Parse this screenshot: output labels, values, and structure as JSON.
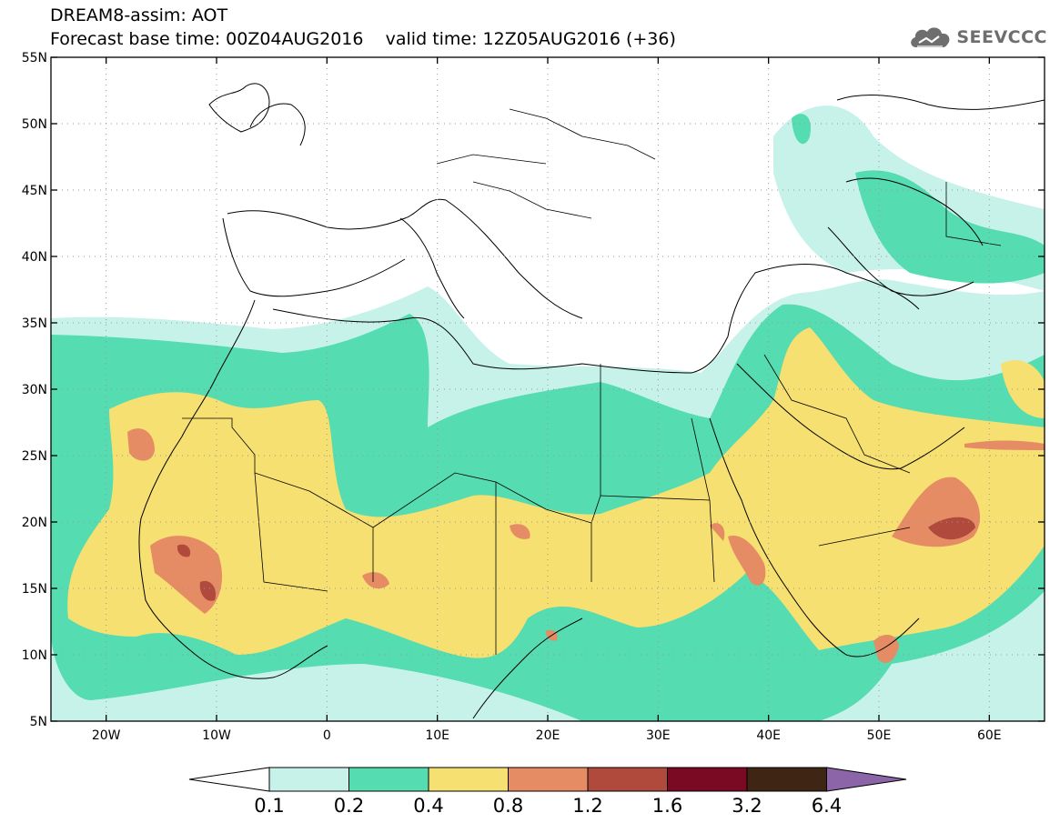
{
  "header": {
    "title_line1": "DREAM8-assim: AOT",
    "title_line2": "Forecast base time: 00Z04AUG2016    valid time: 12Z05AUG2016 (+36)",
    "logo_text": "SEEVCCC"
  },
  "map": {
    "lon_range": [
      -25,
      65
    ],
    "lat_range": [
      5,
      55
    ],
    "lon_ticks": [
      {
        "value": -20,
        "label": "20W"
      },
      {
        "value": -10,
        "label": "10W"
      },
      {
        "value": 0,
        "label": "0"
      },
      {
        "value": 10,
        "label": "10E"
      },
      {
        "value": 20,
        "label": "20E"
      },
      {
        "value": 30,
        "label": "30E"
      },
      {
        "value": 40,
        "label": "40E"
      },
      {
        "value": 50,
        "label": "50E"
      },
      {
        "value": 60,
        "label": "60E"
      }
    ],
    "lat_ticks": [
      {
        "value": 5,
        "label": "5N"
      },
      {
        "value": 10,
        "label": "10N"
      },
      {
        "value": 15,
        "label": "15N"
      },
      {
        "value": 20,
        "label": "20N"
      },
      {
        "value": 25,
        "label": "25N"
      },
      {
        "value": 30,
        "label": "30N"
      },
      {
        "value": 35,
        "label": "35N"
      },
      {
        "value": 40,
        "label": "40N"
      },
      {
        "value": 45,
        "label": "45N"
      },
      {
        "value": 50,
        "label": "50N"
      },
      {
        "value": 55,
        "label": "55N"
      }
    ],
    "grid": true
  },
  "colorbar": {
    "labels": [
      "0.1",
      "0.2",
      "0.4",
      "0.8",
      "1.2",
      "1.6",
      "3.2",
      "6.4"
    ],
    "colors": {
      "below": "#ffffff",
      "c1": "#c6f2ea",
      "c2": "#55dcb0",
      "c3": "#f6e071",
      "c4": "#e68c64",
      "c5": "#b04a3c",
      "c6": "#7a0a24",
      "c7": "#3f2614",
      "above": "#8c64a8"
    }
  }
}
